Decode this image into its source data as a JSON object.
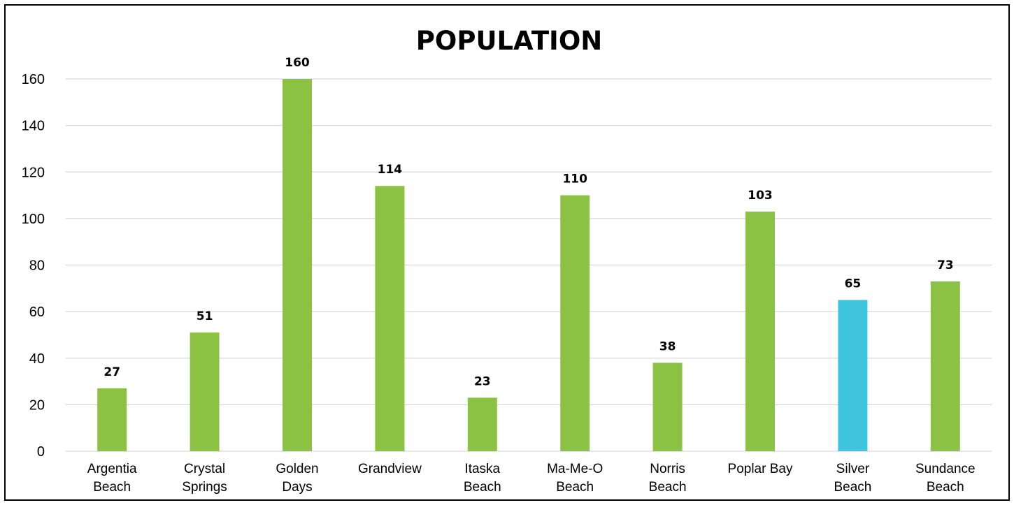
{
  "chart_data": {
    "type": "bar",
    "title": "POPULATION",
    "xlabel": "",
    "ylabel": "",
    "ylim": [
      0,
      160
    ],
    "yticks": [
      0,
      20,
      40,
      60,
      80,
      100,
      120,
      140,
      160
    ],
    "grid": true,
    "legend": "none",
    "categories": [
      [
        "Argentia",
        "Beach"
      ],
      [
        "Crystal",
        "Springs"
      ],
      [
        "Golden",
        "Days"
      ],
      [
        "Grandview"
      ],
      [
        "Itaska",
        "Beach"
      ],
      [
        "Ma-Me-O",
        "Beach"
      ],
      [
        "Norris",
        "Beach"
      ],
      [
        "Poplar Bay"
      ],
      [
        "Silver",
        "Beach"
      ],
      [
        "Sundance",
        "Beach"
      ]
    ],
    "values": [
      27,
      51,
      160,
      114,
      23,
      110,
      38,
      103,
      65,
      73
    ],
    "data_labels": [
      "27",
      "51",
      "160",
      "114",
      "23",
      "110",
      "38",
      "103",
      "65",
      "73"
    ],
    "bar_colors": [
      "#8bc243",
      "#8bc243",
      "#8bc243",
      "#8bc243",
      "#8bc243",
      "#8bc243",
      "#8bc243",
      "#8bc243",
      "#3ec4dd",
      "#8bc243"
    ],
    "gridline_color": "#d9d9d9",
    "text_color": "#000000"
  }
}
